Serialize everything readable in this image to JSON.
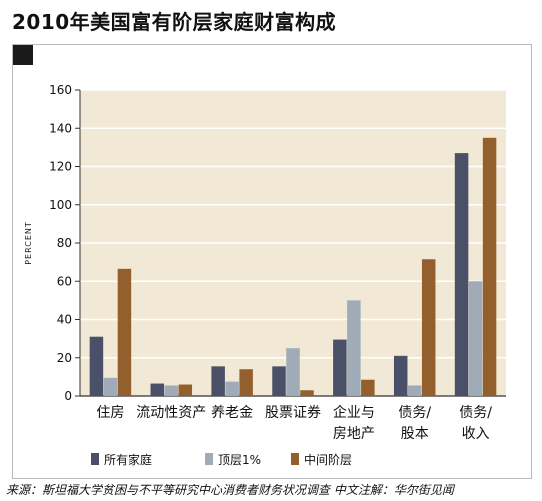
{
  "page": {
    "title": "2010年美国富有阶层家庭财富构成",
    "source_note": "来源：斯坦福大学贫困与不平等研究中心消费者财务状况调查   中文注解：华尔街见闻"
  },
  "chart_data": {
    "type": "bar",
    "title": "",
    "xlabel": "",
    "ylabel": "PERCENT",
    "ylim": [
      0,
      160
    ],
    "yticks": [
      0,
      20,
      40,
      60,
      80,
      100,
      120,
      140,
      160
    ],
    "grid": true,
    "legend_position": "bottom",
    "categories": [
      [
        "住房"
      ],
      [
        "流动性资产"
      ],
      [
        "养老金"
      ],
      [
        "股票证券"
      ],
      [
        "企业与",
        "房地产"
      ],
      [
        "债务/",
        "股本"
      ],
      [
        "债务/",
        "收入"
      ]
    ],
    "series": [
      {
        "name": "所有家庭",
        "color": "#4a5068",
        "values": [
          31,
          6.5,
          15.5,
          15.5,
          29.5,
          21,
          127
        ]
      },
      {
        "name": "顶层1%",
        "color": "#a0abb8",
        "values": [
          9.5,
          5.5,
          7.5,
          25,
          50,
          5.5,
          60
        ]
      },
      {
        "name": "中间阶层",
        "color": "#93602d",
        "values": [
          66.5,
          6,
          14,
          3,
          8.5,
          71.5,
          135
        ]
      }
    ],
    "colors": {
      "plot_background": "#f2e8d6",
      "grid": "#ffffff",
      "frame": "#b9b9b9"
    }
  }
}
